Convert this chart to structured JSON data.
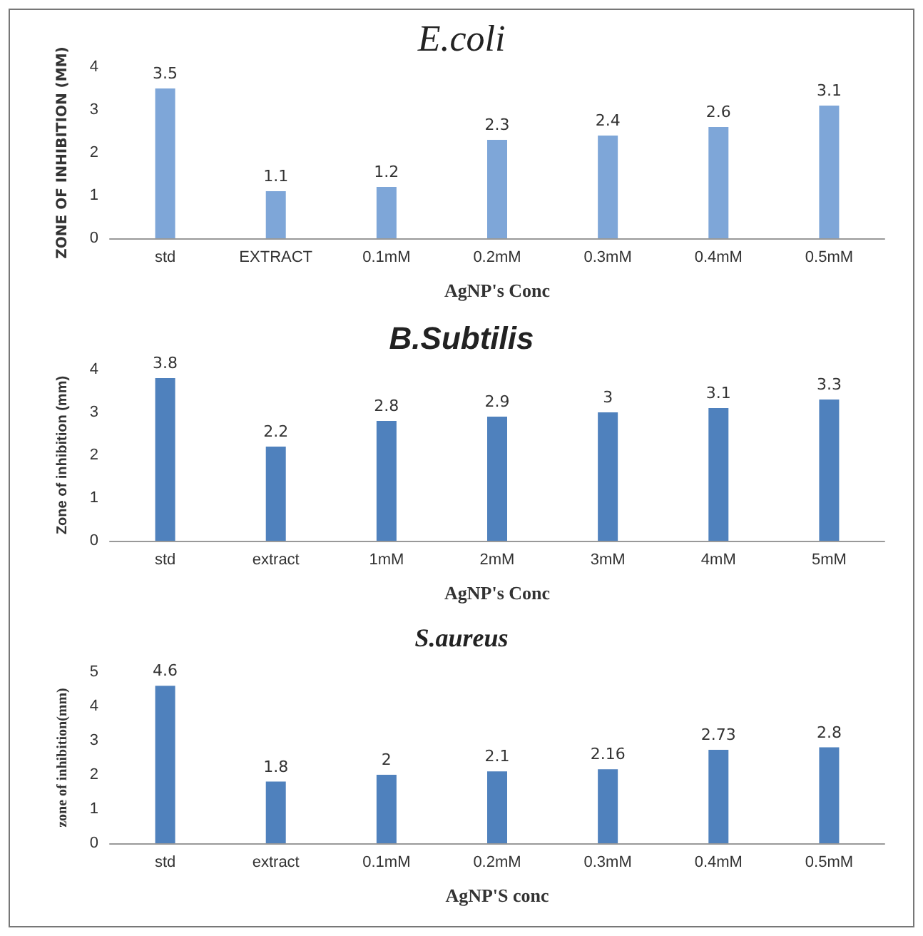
{
  "chart_data": [
    {
      "type": "bar",
      "title": "E.coli",
      "xlabel": "AgNP's Conc",
      "ylabel": "ZONE OF INHIBITION (MM)",
      "categories": [
        "std",
        "EXTRACT",
        "0.1mM",
        "0.2mM",
        "0.3mM",
        "0.4mM",
        "0.5mM"
      ],
      "values": [
        3.5,
        1.1,
        1.2,
        2.3,
        2.4,
        2.6,
        3.1
      ],
      "color": "#7ea6d8",
      "ylim": [
        0,
        4
      ],
      "yticks": [
        0,
        1,
        2,
        3,
        4
      ],
      "data_labels": true
    },
    {
      "type": "bar",
      "title": "B.Subtilis",
      "xlabel": "AgNP's Conc",
      "ylabel": "Zone of inhibition (mm)",
      "categories": [
        "std",
        "extract",
        "1mM",
        "2mM",
        "3mM",
        "4mM",
        "5mM"
      ],
      "values": [
        3.8,
        2.2,
        2.8,
        2.9,
        3,
        3.1,
        3.3
      ],
      "color": "#4f81bd",
      "ylim": [
        0,
        4
      ],
      "yticks": [
        0,
        1,
        2,
        3,
        4
      ],
      "data_labels": true
    },
    {
      "type": "bar",
      "title": "S.aureus",
      "xlabel": "AgNP'S conc",
      "ylabel": "zone of inhibition(mm)",
      "categories": [
        "std",
        "extract",
        "0.1mM",
        "0.2mM",
        "0.3mM",
        "0.4mM",
        "0.5mM"
      ],
      "values": [
        4.6,
        1.8,
        2,
        2.1,
        2.16,
        2.73,
        2.8
      ],
      "color": "#4f81bd",
      "ylim": [
        0,
        5
      ],
      "yticks": [
        0,
        1,
        2,
        3,
        4,
        5
      ],
      "data_labels": true
    }
  ]
}
